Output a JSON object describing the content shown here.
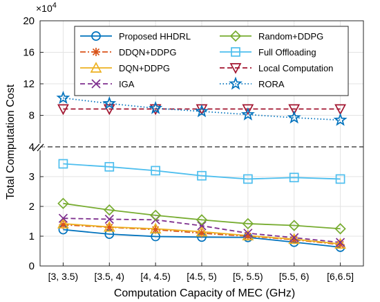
{
  "chart_data": {
    "type": "line",
    "xlabel": "Computation Capacity of MEC (GHz)",
    "ylabel": "Total Computation Cost",
    "exponent_label": "×10",
    "exponent_power": "4",
    "categories": [
      "[3, 3.5)",
      "[3.5, 4)",
      "[4, 4.5)",
      "[4.5, 5)",
      "[5, 5.5)",
      "[5.5, 6)",
      "[6,6.5]"
    ],
    "y_ticks_lower": [
      "0",
      "1",
      "2",
      "3",
      "4"
    ],
    "y_ticks_upper": [
      "8",
      "12",
      "16",
      "20"
    ],
    "y_break": true,
    "ylim_lower": [
      0,
      4
    ],
    "ylim_upper": [
      4,
      20
    ],
    "grid": true,
    "legend_position": "top",
    "series": [
      {
        "name": "Proposed HHDRL",
        "color": "#0072BD",
        "marker": "circle",
        "dash": "solid",
        "values": [
          1.22,
          1.07,
          0.99,
          0.97,
          0.96,
          0.8,
          0.63
        ]
      },
      {
        "name": "DDQN+DDPG",
        "color": "#D95319",
        "marker": "asterisk",
        "dash": "dashdot",
        "values": [
          1.38,
          1.3,
          1.22,
          1.1,
          1.0,
          0.88,
          0.72
        ]
      },
      {
        "name": "DQN+DDPG",
        "color": "#EDB120",
        "marker": "triangle-up",
        "dash": "solid",
        "values": [
          1.42,
          1.31,
          1.25,
          1.15,
          1.02,
          0.9,
          0.74
        ]
      },
      {
        "name": "IGA",
        "color": "#7E2F8E",
        "marker": "x",
        "dash": "dashed",
        "values": [
          1.6,
          1.57,
          1.55,
          1.35,
          1.1,
          0.95,
          0.79
        ]
      },
      {
        "name": "Random+DDPG",
        "color": "#77AC30",
        "marker": "diamond",
        "dash": "solid",
        "values": [
          2.1,
          1.88,
          1.7,
          1.55,
          1.42,
          1.36,
          1.25
        ]
      },
      {
        "name": "Full Offloading",
        "color": "#4DBEEE",
        "marker": "square",
        "dash": "solid",
        "values": [
          3.43,
          3.33,
          3.2,
          3.03,
          2.92,
          2.97,
          2.92
        ]
      },
      {
        "name": "Local Computation",
        "color": "#A2142F",
        "marker": "triangle-down",
        "dash": "dashed",
        "values": [
          8.8,
          8.8,
          8.8,
          8.8,
          8.8,
          8.8,
          8.8
        ]
      },
      {
        "name": "RORA",
        "color": "#0072BD",
        "marker": "pentagram",
        "dash": "dotted",
        "values": [
          10.2,
          9.5,
          8.9,
          8.5,
          8.1,
          7.7,
          7.4
        ]
      }
    ]
  }
}
